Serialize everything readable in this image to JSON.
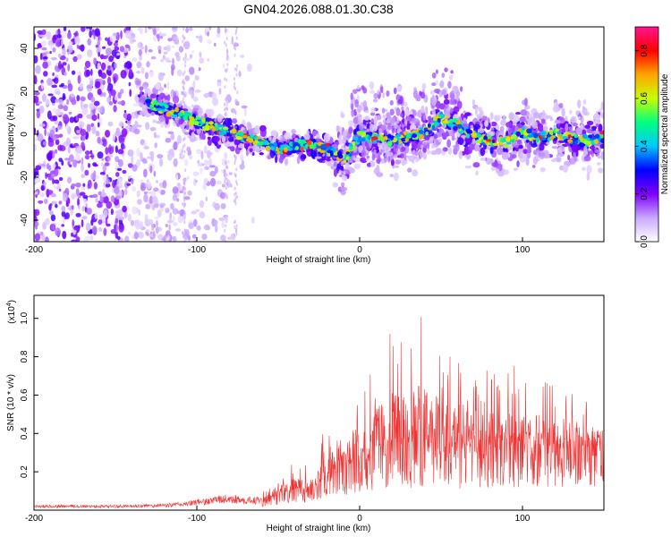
{
  "chart_data": [
    {
      "type": "heatmap",
      "title": "GN04.2026.088.01.30.C38",
      "xlabel": "Height of straight line (km)",
      "ylabel": "Frequency (Hz)",
      "xlim": [
        -200,
        150
      ],
      "ylim": [
        -50,
        50
      ],
      "xticks": [
        -200,
        -100,
        0,
        100
      ],
      "xtick_labels": [
        "-200",
        "-100",
        "0",
        "100"
      ],
      "yticks": [
        -40,
        -20,
        0,
        20,
        40
      ],
      "ytick_labels": [
        "-40",
        "-20",
        "0",
        "20",
        "40"
      ],
      "ridge": {
        "name": "dominant frequency trace",
        "x": [
          -130,
          -120,
          -110,
          -100,
          -90,
          -80,
          -70,
          -60,
          -50,
          -40,
          -30,
          -20,
          -10,
          0,
          10,
          20,
          30,
          40,
          50,
          60,
          70,
          80,
          90,
          100,
          110,
          120,
          130,
          140,
          150
        ],
        "y": [
          15,
          12,
          9,
          6,
          3,
          1,
          -2,
          -4,
          -7,
          -5,
          -5,
          -7,
          -12,
          -1,
          -2,
          -3,
          -1,
          1,
          8,
          4,
          -1,
          -3,
          -4,
          1,
          -2,
          0,
          -2,
          -3,
          -1
        ]
      },
      "colorbar": {
        "label": "Normalized spectral amplitude",
        "range": [
          0.0,
          0.9
        ],
        "ticks": [
          0.0,
          0.2,
          0.4,
          0.6,
          0.8
        ],
        "tick_labels": [
          "0.0",
          "0.2",
          "0.4",
          "0.6",
          "0.8"
        ],
        "colors": [
          "#ffffff",
          "#c9a8ff",
          "#8000ff",
          "#0000ff",
          "#00c8ff",
          "#00ff80",
          "#c8ff00",
          "#ffa500",
          "#ff0000",
          "#ff1493"
        ]
      }
    },
    {
      "type": "line",
      "xlabel": "Height of straight line (km)",
      "ylabel": "SNR (10 * v/v)",
      "scale_label": "(x10",
      "scale_exponent": "4",
      "scale_close": ")",
      "xlim": [
        -200,
        150
      ],
      "ylim": [
        0,
        1.12
      ],
      "xticks": [
        -200,
        -100,
        0,
        100
      ],
      "xtick_labels": [
        "-200",
        "-100",
        "0",
        "100"
      ],
      "yticks": [
        0.2,
        0.4,
        0.6,
        0.8,
        1.0
      ],
      "ytick_labels": [
        "0.2",
        "0.4",
        "0.6",
        "0.8",
        "1.0"
      ],
      "series": [
        {
          "name": "SNR envelope",
          "color": "#ee3333",
          "x": [
            -200,
            -170,
            -140,
            -120,
            -110,
            -100,
            -90,
            -80,
            -70,
            -60,
            -50,
            -40,
            -30,
            -25,
            -20,
            -15,
            -10,
            -5,
            0,
            5,
            10,
            15,
            20,
            25,
            30,
            35,
            40,
            45,
            50,
            55,
            60,
            65,
            70,
            75,
            80,
            85,
            90,
            95,
            100,
            105,
            110,
            115,
            120,
            125,
            130,
            135,
            140,
            145,
            150
          ],
          "mean": [
            0.02,
            0.02,
            0.02,
            0.025,
            0.03,
            0.04,
            0.05,
            0.06,
            0.05,
            0.05,
            0.08,
            0.1,
            0.12,
            0.13,
            0.18,
            0.2,
            0.22,
            0.24,
            0.26,
            0.28,
            0.3,
            0.32,
            0.34,
            0.34,
            0.33,
            0.33,
            0.35,
            0.35,
            0.33,
            0.32,
            0.3,
            0.32,
            0.36,
            0.33,
            0.33,
            0.34,
            0.34,
            0.33,
            0.34,
            0.35,
            0.33,
            0.33,
            0.34,
            0.33,
            0.34,
            0.33,
            0.33,
            0.35,
            0.34
          ],
          "peak": [
            0.04,
            0.04,
            0.04,
            0.05,
            0.06,
            0.08,
            0.1,
            0.16,
            0.12,
            0.1,
            0.2,
            0.25,
            0.24,
            0.28,
            0.62,
            0.38,
            0.42,
            0.45,
            0.6,
            0.68,
            0.82,
            0.87,
            0.95,
            0.9,
            0.92,
            1.1,
            1.0,
            1.12,
            0.9,
            0.8,
            0.88,
            0.9,
            0.8,
            0.75,
            0.74,
            0.75,
            0.78,
            0.8,
            0.72,
            0.76,
            0.72,
            0.7,
            0.8,
            0.72,
            0.66,
            0.6,
            0.58,
            0.52,
            0.52
          ]
        }
      ]
    }
  ]
}
